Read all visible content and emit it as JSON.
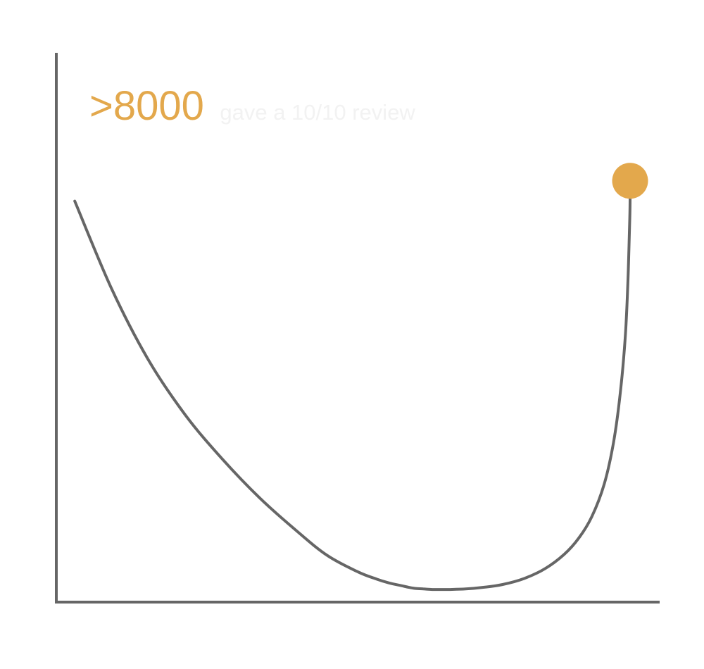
{
  "chart_data": {
    "type": "line",
    "title": "",
    "xlabel": "",
    "ylabel": "",
    "x": [
      0,
      6,
      12,
      18,
      24,
      30,
      36,
      41,
      46,
      49,
      51,
      53,
      54.2,
      55.2,
      56.6,
      58.1,
      60.7,
      63.5,
      66.5,
      69.5,
      73,
      76.4,
      79.5,
      81.9,
      84,
      86,
      87.5,
      88.6,
      89.4,
      89.8,
      90,
      90.15,
      90.2
    ],
    "y": [
      7.3,
      5.7,
      4.4,
      3.4,
      2.6,
      1.9,
      1.3,
      0.85,
      0.55,
      0.42,
      0.35,
      0.3,
      0.27,
      0.25,
      0.24,
      0.23,
      0.23,
      0.24,
      0.27,
      0.32,
      0.43,
      0.61,
      0.87,
      1.17,
      1.56,
      2.15,
      2.9,
      3.8,
      4.8,
      5.7,
      6.4,
      7.0,
      7.35
    ],
    "xlim": [
      -3,
      95
    ],
    "ylim": [
      0,
      10
    ],
    "grid": false,
    "axes": [
      "left",
      "bottom"
    ],
    "highlight": {
      "index": 32,
      "value_label": ">8000",
      "text": "gave a 10/10 review"
    },
    "colors": {
      "line": "#666666",
      "axis": "#666666",
      "highlight": "#E3A84C",
      "callout_text": "#F2F2F2"
    }
  }
}
